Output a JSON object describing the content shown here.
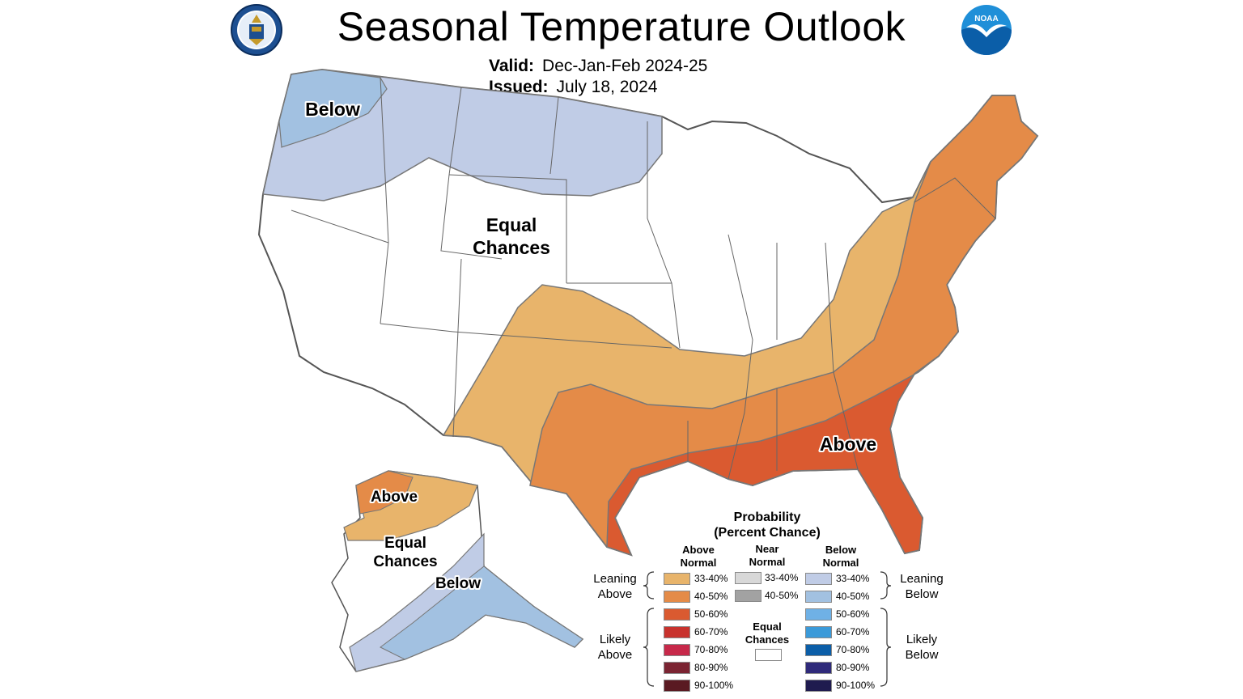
{
  "title": "Seasonal Temperature Outlook",
  "valid_label": "Valid:",
  "valid_value": "Dec-Jan-Feb 2024-25",
  "issued_label": "Issued:",
  "issued_value": "July 18, 2024",
  "logos": {
    "left": "department-of-commerce-seal",
    "right": "noaa-logo",
    "right_text": "NOAA"
  },
  "map_labels": {
    "below_nw": "Below",
    "equal_line1": "Equal",
    "equal_line2": "Chances",
    "above_se": "Above",
    "ak_above": "Above",
    "ak_equal_line1": "Equal",
    "ak_equal_line2": "Chances",
    "ak_below": "Below"
  },
  "colors": {
    "above_33_40": "#e8b46b",
    "above_40_50": "#e48b48",
    "above_50_60": "#da5a30",
    "above_60_70": "#c8322d",
    "above_70_80": "#c7294a",
    "above_80_90": "#7b2432",
    "above_90_100": "#5a1a22",
    "near_33_40": "#d8d8d8",
    "near_40_50": "#a2a2a2",
    "below_33_40": "#c0cce6",
    "below_40_50": "#a2c1e1",
    "below_50_60": "#6fb1e6",
    "below_60_70": "#3b9ad9",
    "below_70_80": "#0b5ea8",
    "below_80_90": "#2f2a7a",
    "below_90_100": "#1f1b4f",
    "equal": "#ffffff"
  },
  "legend": {
    "title_line1": "Probability",
    "title_line2": "(Percent Chance)",
    "col_above": "Above Normal",
    "col_near": "Near Normal",
    "col_below": "Below Normal",
    "leaning_above": "Leaning Above",
    "likely_above": "Likely Above",
    "leaning_below": "Leaning Below",
    "likely_below": "Likely Below",
    "equal_chances": "Equal Chances",
    "above_rows": [
      "33-40%",
      "40-50%",
      "50-60%",
      "60-70%",
      "70-80%",
      "80-90%",
      "90-100%"
    ],
    "near_rows": [
      "33-40%",
      "40-50%"
    ],
    "below_rows": [
      "33-40%",
      "40-50%",
      "50-60%",
      "60-70%",
      "70-80%",
      "80-90%",
      "90-100%"
    ]
  }
}
